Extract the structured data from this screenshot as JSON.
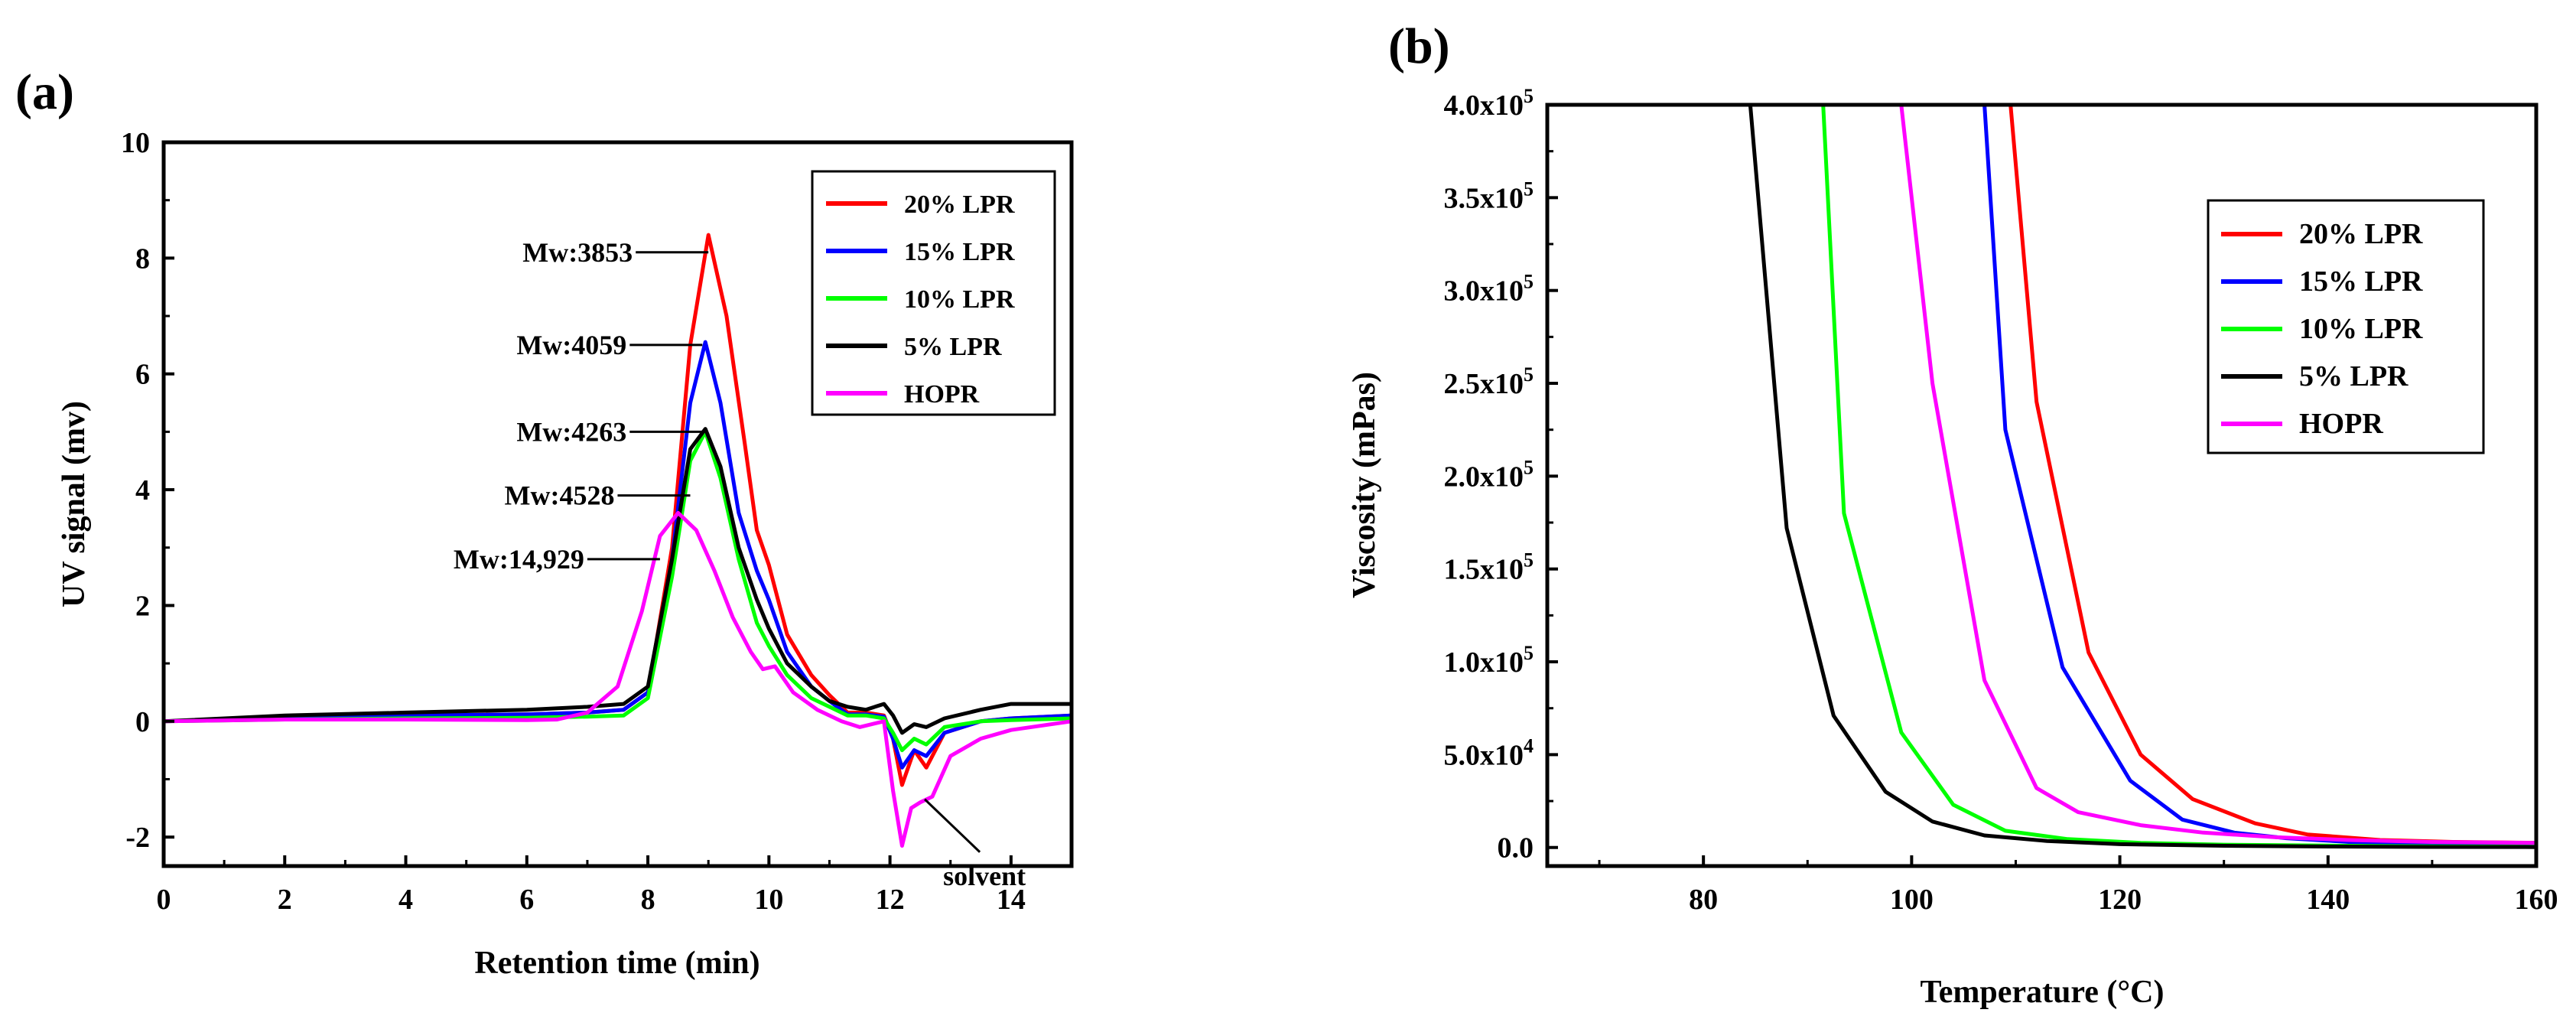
{
  "figure": {
    "panel_a_label": "(a)",
    "panel_b_label": "(b)"
  },
  "chart_data": [
    {
      "type": "line",
      "panel": "(a)",
      "title": "",
      "xlabel": "Retention time (min)",
      "ylabel": "UV signal (mv)",
      "xlim": [
        0,
        15
      ],
      "ylim": [
        -2.5,
        10
      ],
      "xticks": [
        "0",
        "2",
        "4",
        "6",
        "8",
        "10",
        "12",
        "14"
      ],
      "yticks": [
        "-2",
        "0",
        "2",
        "4",
        "6",
        "8",
        "10"
      ],
      "legend_position": "top-right",
      "series": [
        {
          "name": "20% LPR",
          "color": "#ff0000",
          "x": [
            0,
            2,
            4,
            6,
            7,
            7.6,
            8,
            8.4,
            8.7,
            9,
            9.3,
            9.6,
            9.8,
            10,
            10.3,
            10.7,
            11,
            11.3,
            11.6,
            11.9,
            12.05,
            12.2,
            12.4,
            12.6,
            12.9,
            13.5,
            14,
            15
          ],
          "y": [
            0,
            0.05,
            0.1,
            0.12,
            0.15,
            0.2,
            0.5,
            3,
            6.5,
            8.4,
            7,
            4.8,
            3.3,
            2.7,
            1.5,
            0.8,
            0.45,
            0.15,
            0.15,
            0.1,
            -0.3,
            -1.1,
            -0.5,
            -0.8,
            -0.2,
            0,
            0.05,
            0.1
          ]
        },
        {
          "name": "15% LPR",
          "color": "#0000ff",
          "x": [
            0,
            2,
            4,
            6,
            7,
            7.6,
            8,
            8.4,
            8.7,
            8.95,
            9.2,
            9.5,
            9.8,
            10,
            10.3,
            10.7,
            11,
            11.3,
            11.6,
            11.9,
            12.05,
            12.2,
            12.4,
            12.6,
            12.9,
            13.5,
            14,
            15
          ],
          "y": [
            0,
            0.05,
            0.1,
            0.12,
            0.15,
            0.2,
            0.5,
            2.8,
            5.5,
            6.55,
            5.5,
            3.6,
            2.6,
            2.1,
            1.2,
            0.6,
            0.35,
            0.12,
            0.12,
            0.08,
            -0.3,
            -0.8,
            -0.5,
            -0.6,
            -0.2,
            0,
            0.05,
            0.1
          ]
        },
        {
          "name": "10% LPR",
          "color": "#00ff00",
          "x": [
            0,
            2,
            4,
            6,
            7,
            7.6,
            8,
            8.4,
            8.7,
            8.95,
            9.2,
            9.5,
            9.8,
            10,
            10.3,
            10.7,
            11,
            11.3,
            11.6,
            11.9,
            12.05,
            12.2,
            12.4,
            12.6,
            12.9,
            13.5,
            14,
            15
          ],
          "y": [
            0,
            0.03,
            0.05,
            0.06,
            0.08,
            0.1,
            0.4,
            2.5,
            4.5,
            5.0,
            4.2,
            2.8,
            1.7,
            1.3,
            0.8,
            0.4,
            0.25,
            0.1,
            0.1,
            0.05,
            -0.2,
            -0.5,
            -0.3,
            -0.4,
            -0.1,
            0,
            0.02,
            0.05
          ]
        },
        {
          "name": "5% LPR",
          "color": "#000000",
          "x": [
            0,
            2,
            4,
            6,
            7,
            7.6,
            8,
            8.4,
            8.7,
            8.95,
            9.2,
            9.5,
            9.8,
            10,
            10.3,
            10.7,
            11,
            11.3,
            11.6,
            11.9,
            12.05,
            12.2,
            12.4,
            12.6,
            12.9,
            13.5,
            14,
            15
          ],
          "y": [
            0,
            0.1,
            0.15,
            0.2,
            0.25,
            0.3,
            0.6,
            2.8,
            4.7,
            5.05,
            4.4,
            3.0,
            2.1,
            1.6,
            1.0,
            0.6,
            0.35,
            0.25,
            0.2,
            0.3,
            0.1,
            -0.2,
            -0.05,
            -0.1,
            0.05,
            0.2,
            0.3,
            0.3
          ]
        },
        {
          "name": "HOPR",
          "color": "#ff00ff",
          "x": [
            0,
            2,
            4,
            6,
            6.5,
            7,
            7.5,
            7.9,
            8.2,
            8.5,
            8.8,
            9.1,
            9.4,
            9.7,
            9.9,
            10.1,
            10.4,
            10.8,
            11.2,
            11.5,
            11.9,
            12.05,
            12.2,
            12.35,
            12.5,
            12.7,
            13,
            13.5,
            14,
            15
          ],
          "y": [
            0,
            0.03,
            0.03,
            0.02,
            0.03,
            0.15,
            0.6,
            1.9,
            3.2,
            3.6,
            3.3,
            2.6,
            1.8,
            1.2,
            0.9,
            0.95,
            0.5,
            0.2,
            0,
            -0.1,
            0,
            -1.2,
            -2.15,
            -1.5,
            -1.4,
            -1.3,
            -0.6,
            -0.3,
            -0.15,
            0
          ]
        }
      ],
      "annotations": [
        {
          "text": "Mw:3853",
          "x": 9.0,
          "y": 8.1
        },
        {
          "text": "Mw:4059",
          "x": 8.9,
          "y": 6.5
        },
        {
          "text": "Mw:4263",
          "x": 8.9,
          "y": 5.0
        },
        {
          "text": "Mw:4528",
          "x": 8.7,
          "y": 3.9
        },
        {
          "text": "Mw:14,929",
          "x": 8.2,
          "y": 2.8
        },
        {
          "text": "solvent",
          "x": 12.6,
          "y": -1.4
        }
      ]
    },
    {
      "type": "line",
      "panel": "(b)",
      "title": "",
      "xlabel": "Temperature (°C)",
      "ylabel": "Viscosity (mPas)",
      "xlim": [
        65,
        160
      ],
      "ylim": [
        -10000,
        400000
      ],
      "xticks": [
        "80",
        "100",
        "120",
        "140",
        "160"
      ],
      "yticks": [
        "0.0",
        "5.0x10",
        "1.0x10",
        "1.5x10",
        "2.0x10",
        "2.5x10",
        "3.0x10",
        "3.5x10",
        "4.0x10"
      ],
      "ytick_exponents": [
        "",
        "4",
        "5",
        "5",
        "5",
        "5",
        "5",
        "5",
        "5"
      ],
      "legend_position": "top-right",
      "series": [
        {
          "name": "20% LPR",
          "color": "#ff0000",
          "x": [
            109.5,
            112,
            117,
            122,
            127,
            133,
            138,
            145,
            152,
            160
          ],
          "y": [
            400000,
            240000,
            105000,
            50000,
            26000,
            13000,
            7000,
            4000,
            3000,
            2500
          ]
        },
        {
          "name": "15% LPR",
          "color": "#0000ff",
          "x": [
            107,
            109,
            114.5,
            121,
            126,
            131,
            136,
            142,
            150,
            160
          ],
          "y": [
            400000,
            225000,
            97000,
            36000,
            15000,
            8000,
            5000,
            3000,
            2000,
            1500
          ]
        },
        {
          "name": "10% LPR",
          "color": "#00ff00",
          "x": [
            91.5,
            93.5,
            99,
            104,
            109,
            115,
            122,
            130,
            140,
            150,
            160
          ],
          "y": [
            400000,
            180000,
            62000,
            23000,
            9000,
            4500,
            2500,
            1500,
            1000,
            600,
            400
          ]
        },
        {
          "name": "5% LPR",
          "color": "#000000",
          "x": [
            84.5,
            88,
            92.5,
            97.5,
            102,
            107,
            113,
            120,
            130,
            140,
            150,
            160
          ],
          "y": [
            400000,
            172000,
            71000,
            30000,
            14000,
            6500,
            3500,
            1800,
            900,
            500,
            300,
            200
          ]
        },
        {
          "name": "HOPR",
          "color": "#ff00ff",
          "x": [
            99,
            102,
            107,
            112,
            116,
            122,
            128,
            135,
            142,
            150,
            160
          ],
          "y": [
            400000,
            250000,
            90000,
            32000,
            19000,
            12000,
            8000,
            5500,
            4000,
            3000,
            2500
          ]
        }
      ]
    }
  ]
}
